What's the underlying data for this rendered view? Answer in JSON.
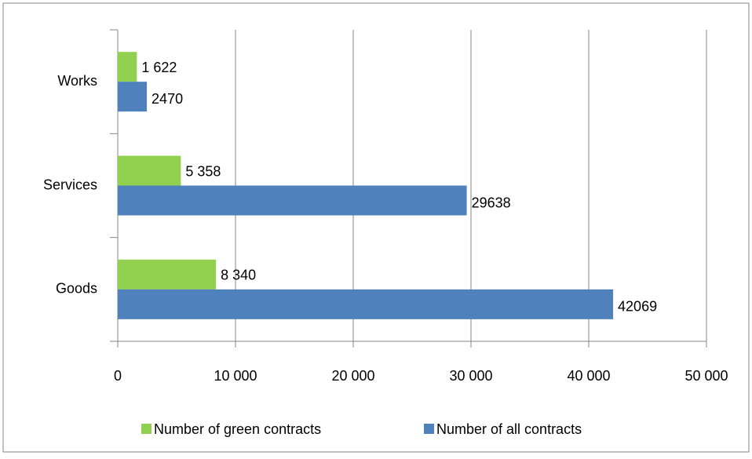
{
  "chart_data": {
    "type": "hbar",
    "categories": [
      "Works",
      "Services",
      "Goods"
    ],
    "series": [
      {
        "name": "Number of green contracts",
        "color": "#92d050",
        "values": [
          1622,
          5358,
          8340
        ],
        "value_labels": [
          "1 622",
          "5 358",
          "8 340"
        ]
      },
      {
        "name": "Number of all contracts",
        "color": "#4f81bd",
        "values": [
          2470,
          29638,
          42069
        ]
      }
    ],
    "xlim": [
      0,
      50000
    ],
    "xticks": [
      0,
      {
        "value": 10000,
        "label": "10 000"
      },
      {
        "value": 20000,
        "label": "20 000"
      },
      {
        "value": 30000,
        "label": "30 000"
      },
      {
        "value": 40000,
        "label": "40 000"
      },
      {
        "value": 50000,
        "label": "50 000"
      }
    ],
    "grid": true,
    "legend": "bottom"
  }
}
